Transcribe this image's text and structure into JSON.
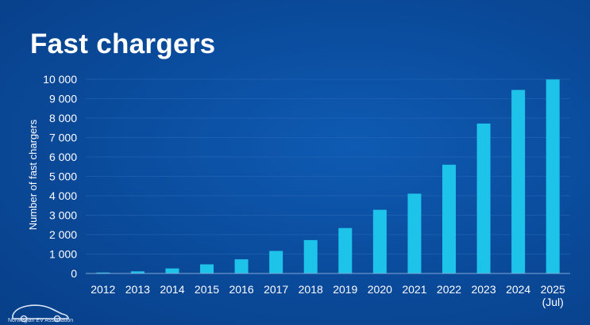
{
  "title": "Fast chargers",
  "logo_text": "Norwegian EV Association",
  "colors": {
    "background": "#0a4a9a",
    "bar": "#1ec3ea",
    "text": "#ffffff",
    "axis": "#7fa6d6"
  },
  "chart_data": {
    "type": "bar",
    "title": "Fast chargers",
    "xlabel": "",
    "ylabel": "Number of fast chargers",
    "ylim": [
      0,
      10000
    ],
    "yticks": [
      0,
      1000,
      2000,
      3000,
      4000,
      5000,
      6000,
      7000,
      8000,
      9000,
      10000
    ],
    "ytick_labels": [
      "0",
      "1 000",
      "2 000",
      "3 000",
      "4 000",
      "5 000",
      "6 000",
      "7 000",
      "8 000",
      "9 000",
      "10 000"
    ],
    "categories": [
      "2012",
      "2013",
      "2014",
      "2015",
      "2016",
      "2017",
      "2018",
      "2019",
      "2020",
      "2021",
      "2022",
      "2023",
      "2024",
      "2025"
    ],
    "category_sublabels": [
      "",
      "",
      "",
      "",
      "",
      "",
      "",
      "",
      "",
      "",
      "",
      "",
      "",
      "(Jul)"
    ],
    "values": [
      50,
      110,
      260,
      470,
      730,
      1160,
      1720,
      2340,
      3280,
      4110,
      5600,
      7720,
      9450,
      9990
    ],
    "grid": true,
    "legend": "none"
  }
}
